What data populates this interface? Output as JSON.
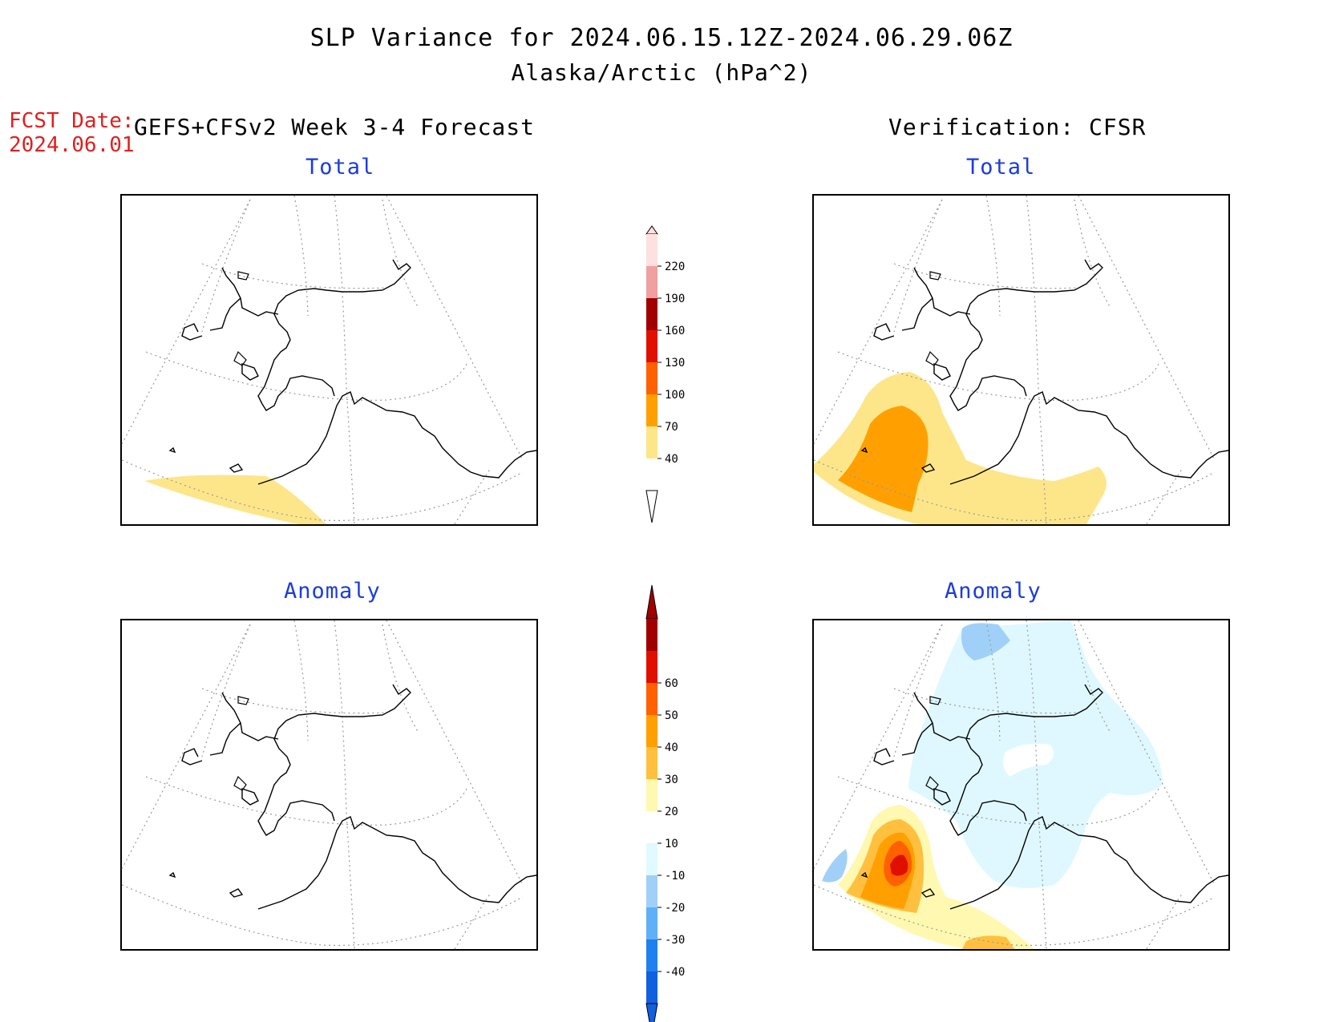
{
  "header": {
    "title": "SLP Variance for 2024.06.15.12Z-2024.06.29.06Z",
    "subtitle": "Alaska/Arctic (hPa^2)",
    "fcst_label": "FCST Date:",
    "fcst_date": "2024.06.01",
    "left_column_title": "GEFS+CFSv2 Week 3-4 Forecast",
    "right_column_title": "Verification: CFSR"
  },
  "panels": {
    "forecast_total": {
      "label": "Total"
    },
    "verify_total": {
      "label": "Total"
    },
    "forecast_anomaly": {
      "label": "Anomaly"
    },
    "verify_anomaly": {
      "label": "Anomaly"
    }
  },
  "colorbars": {
    "total": {
      "levels": [
        "40",
        "70",
        "100",
        "130",
        "160",
        "190",
        "220"
      ],
      "colors": [
        "#fde68a",
        "#ffa000",
        "#ff6000",
        "#e01000",
        "#a00000",
        "#f0a0a0",
        "#fde0e0"
      ]
    },
    "anomaly": {
      "levels": [
        "-40",
        "-30",
        "-20",
        "-10",
        "10",
        "20",
        "30",
        "40",
        "50",
        "60"
      ],
      "colors": [
        "#1060e0",
        "#2080f0",
        "#60b0f8",
        "#a0d0f8",
        "#e0faff",
        "#ffffff",
        "#fff8b0",
        "#ffc040",
        "#ffa000",
        "#ff6000",
        "#e01000",
        "#a00000"
      ]
    }
  },
  "colors": {
    "accent_red": "#e02020",
    "label_blue": "#1a3ce0"
  }
}
